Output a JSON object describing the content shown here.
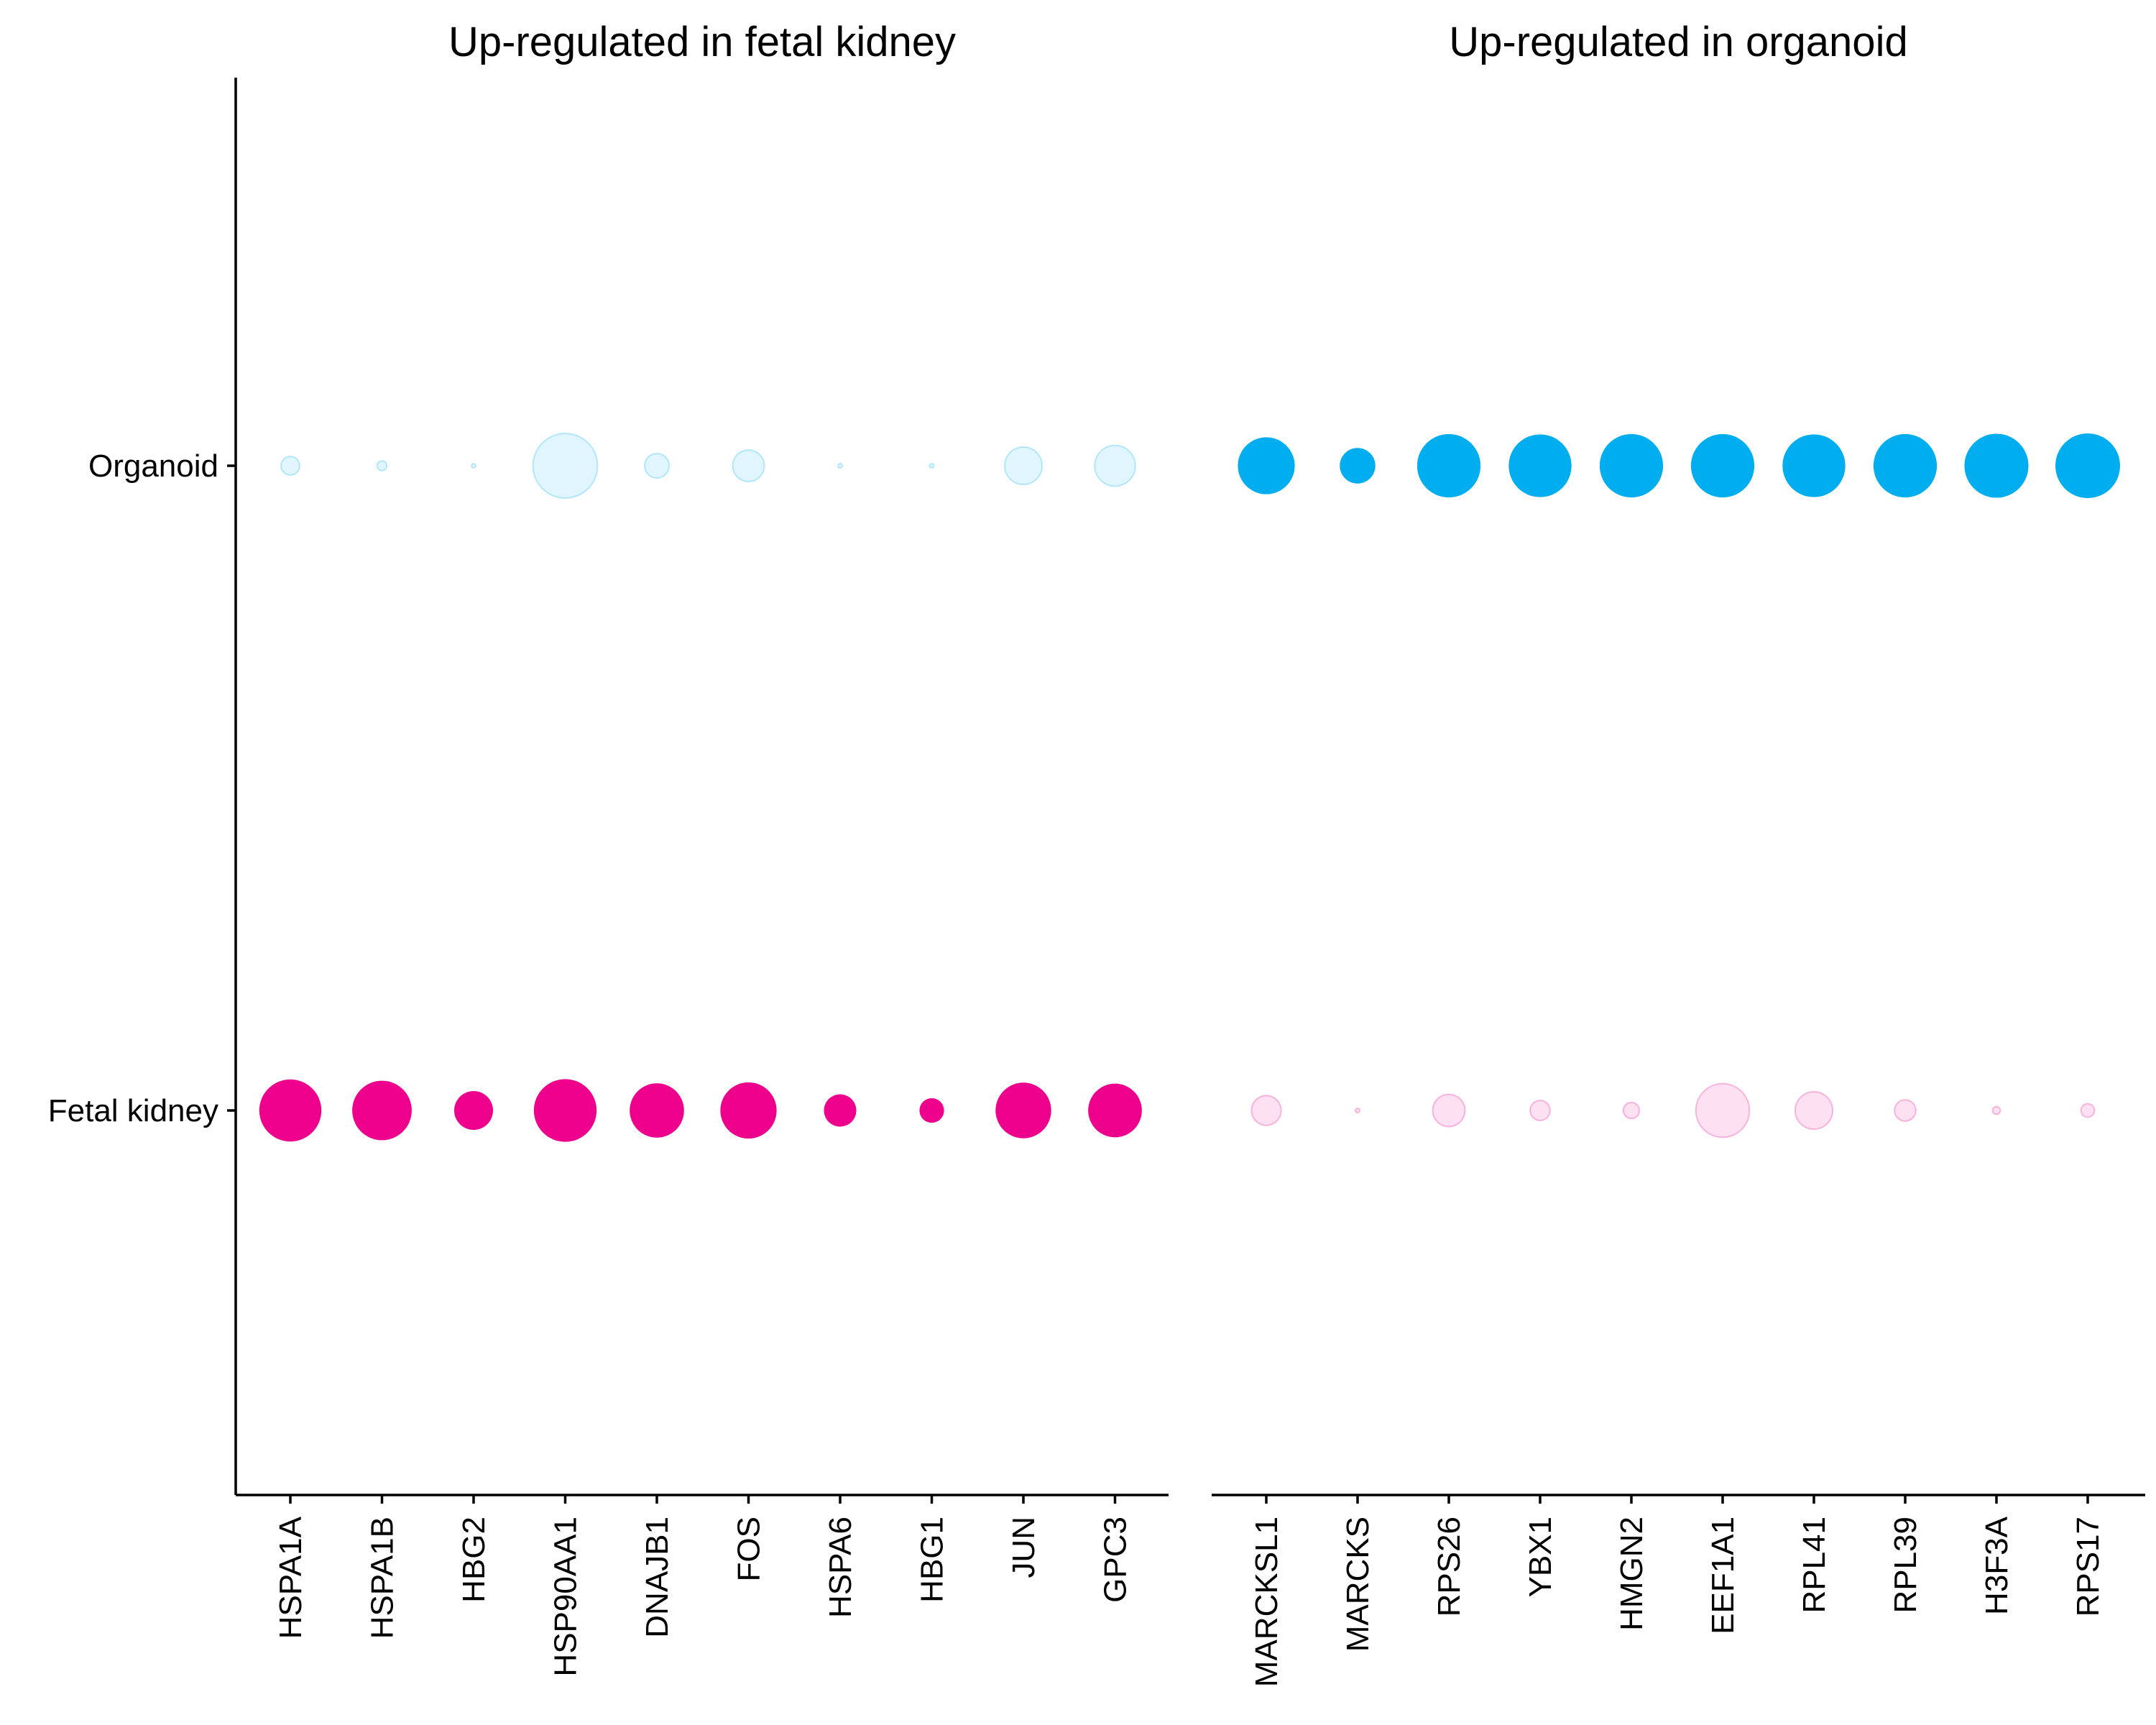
{
  "chart_data": {
    "type": "scatter",
    "subtype": "dot-plot",
    "y_categories": [
      "Organoid",
      "Fetal kidney"
    ],
    "colors": {
      "Organoid": "#00AEEF",
      "Fetal kidney": "#EC008C"
    },
    "grid": false,
    "legend": "none",
    "panels": [
      {
        "title": "Up-regulated in fetal kidney",
        "genes": [
          "HSPA1A",
          "HSPA1B",
          "HBG2",
          "HSP90AA1",
          "DNAJB1",
          "FOS",
          "HSPA6",
          "HBG1",
          "JUN",
          "GPC3"
        ],
        "series": [
          {
            "name": "Organoid",
            "relative_size": [
              0.29,
              0.15,
              0.04,
              1.0,
              0.38,
              0.49,
              0.05,
              0.05,
              0.58,
              0.63
            ],
            "opacity": 0.12
          },
          {
            "name": "Fetal kidney",
            "relative_size": [
              0.96,
              0.92,
              0.6,
              0.97,
              0.84,
              0.87,
              0.5,
              0.38,
              0.86,
              0.83
            ],
            "opacity": 1
          }
        ]
      },
      {
        "title": "Up-regulated in organoid",
        "genes": [
          "MARCKSL1",
          "MARCKS",
          "RPS26",
          "YBX1",
          "HMGN2",
          "EEF1A1",
          "RPL41",
          "RPL39",
          "H3F3A",
          "RPS17"
        ],
        "series": [
          {
            "name": "Organoid",
            "relative_size": [
              0.88,
              0.55,
              0.98,
              0.97,
              0.98,
              0.98,
              0.97,
              0.98,
              0.99,
              1.0
            ],
            "opacity": 1
          },
          {
            "name": "Fetal kidney",
            "relative_size": [
              0.46,
              0.05,
              0.5,
              0.31,
              0.25,
              0.83,
              0.58,
              0.33,
              0.12,
              0.21
            ],
            "opacity": 0.12
          }
        ]
      }
    ]
  }
}
